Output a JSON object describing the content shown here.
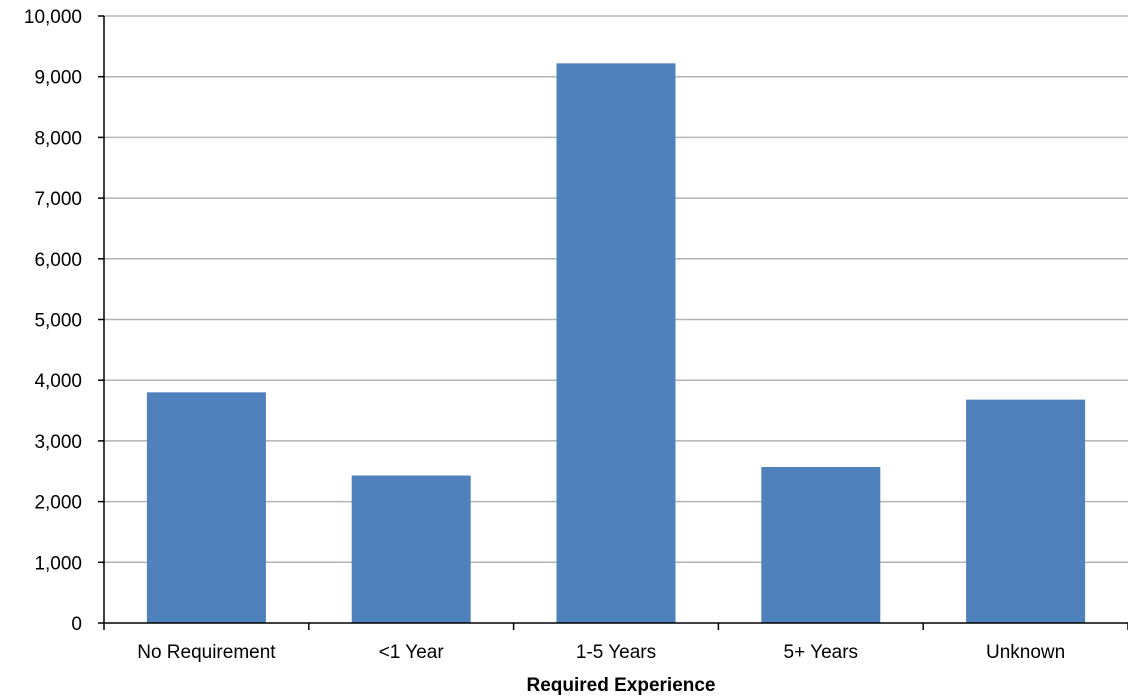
{
  "chart_data": {
    "type": "bar",
    "categories": [
      "No Requirement",
      "<1 Year",
      "1-5 Years",
      "5+ Years",
      "Unknown"
    ],
    "values": [
      3800,
      2430,
      9220,
      2570,
      3680
    ],
    "title": "",
    "xlabel": "Required Experience",
    "ylabel": "",
    "ylim": [
      0,
      10000
    ],
    "yticks": [
      0,
      1000,
      2000,
      3000,
      4000,
      5000,
      6000,
      7000,
      8000,
      9000,
      10000
    ],
    "ytick_labels": [
      "0",
      "1,000",
      "2,000",
      "3,000",
      "4,000",
      "5,000",
      "6,000",
      "7,000",
      "8,000",
      "9,000",
      "10,000"
    ],
    "grid": true,
    "legend": "none",
    "colors": {
      "bar": "#4f81bd",
      "grid": "#b3b3b3",
      "axis": "#000000"
    }
  }
}
